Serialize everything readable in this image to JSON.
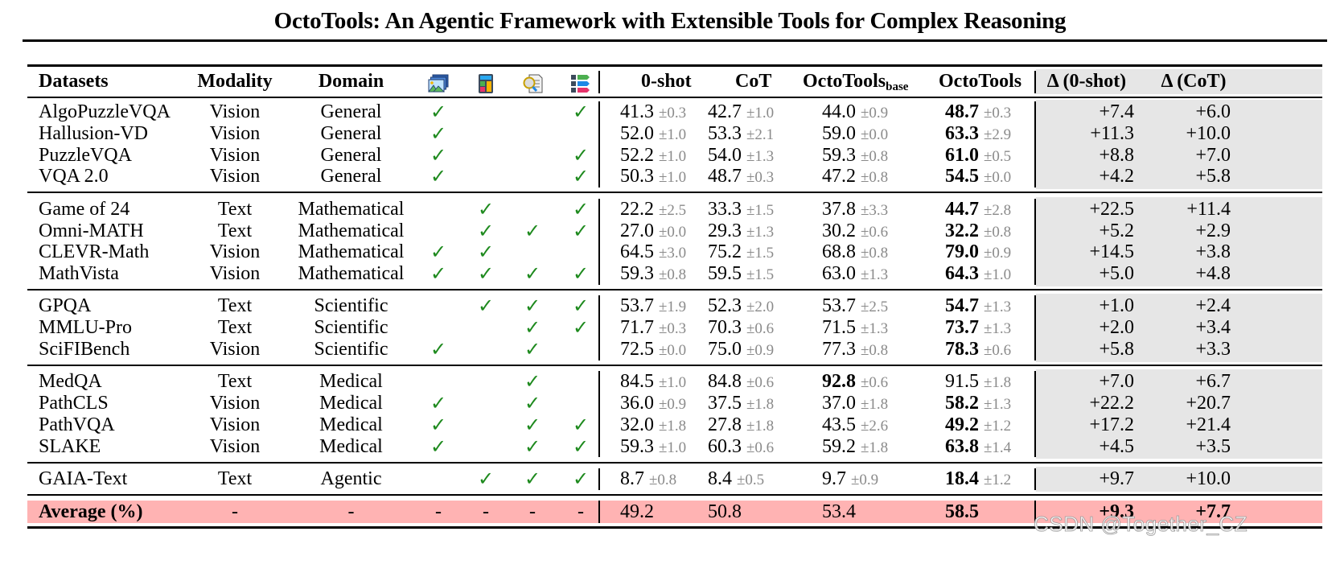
{
  "title": "OctoTools: An Agentic Framework with Extensible Tools for Complex Reasoning",
  "header": {
    "datasets": "Datasets",
    "modality": "Modality",
    "domain": "Domain",
    "tool_icons": [
      "image-tool-icon",
      "calculator-tool-icon",
      "search-document-tool-icon",
      "list-tags-tool-icon"
    ],
    "zero_shot": "0-shot",
    "cot": "CoT",
    "octotools_base": "OctoTools",
    "octotools_base_sub": "base",
    "octotools": "OctoTools",
    "delta_zero_shot": "Δ (0-shot)",
    "delta_cot": "Δ (CoT)"
  },
  "check_glyph": "✓",
  "rows": [
    {
      "dataset": "AlgoPuzzleVQA",
      "modality": "Vision",
      "domain": "General",
      "tools": [
        "✓",
        "",
        "",
        "✓"
      ],
      "zs": "41.3",
      "zs_std": "±0.3",
      "cot": "42.7",
      "cot_std": "±1.0",
      "base": "44.0",
      "base_std": "±0.9",
      "oct": "48.7",
      "oct_std": "±0.3",
      "d0": "+7.4",
      "dc": "+6.0"
    },
    {
      "dataset": "Hallusion-VD",
      "modality": "Vision",
      "domain": "General",
      "tools": [
        "✓",
        "",
        "",
        ""
      ],
      "zs": "52.0",
      "zs_std": "±1.0",
      "cot": "53.3",
      "cot_std": "±2.1",
      "base": "59.0",
      "base_std": "±0.0",
      "oct": "63.3",
      "oct_std": "±2.9",
      "d0": "+11.3",
      "dc": "+10.0"
    },
    {
      "dataset": "PuzzleVQA",
      "modality": "Vision",
      "domain": "General",
      "tools": [
        "✓",
        "",
        "",
        "✓"
      ],
      "zs": "52.2",
      "zs_std": "±1.0",
      "cot": "54.0",
      "cot_std": "±1.3",
      "base": "59.3",
      "base_std": "±0.8",
      "oct": "61.0",
      "oct_std": "±0.5",
      "d0": "+8.8",
      "dc": "+7.0"
    },
    {
      "dataset": "VQA 2.0",
      "modality": "Vision",
      "domain": "General",
      "tools": [
        "✓",
        "",
        "",
        "✓"
      ],
      "zs": "50.3",
      "zs_std": "±1.0",
      "cot": "48.7",
      "cot_std": "±0.3",
      "base": "47.2",
      "base_std": "±0.8",
      "oct": "54.5",
      "oct_std": "±0.0",
      "d0": "+4.2",
      "dc": "+5.8"
    },
    {
      "dataset": "Game of 24",
      "modality": "Text",
      "domain": "Mathematical",
      "tools": [
        "",
        "✓",
        "",
        "✓"
      ],
      "zs": "22.2",
      "zs_std": "±2.5",
      "cot": "33.3",
      "cot_std": "±1.5",
      "base": "37.8",
      "base_std": "±3.3",
      "oct": "44.7",
      "oct_std": "±2.8",
      "d0": "+22.5",
      "dc": "+11.4"
    },
    {
      "dataset": "Omni-MATH",
      "modality": "Text",
      "domain": "Mathematical",
      "tools": [
        "",
        "✓",
        "✓",
        "✓"
      ],
      "zs": "27.0",
      "zs_std": "±0.0",
      "cot": "29.3",
      "cot_std": "±1.3",
      "base": "30.2",
      "base_std": "±0.6",
      "oct": "32.2",
      "oct_std": "±0.8",
      "d0": "+5.2",
      "dc": "+2.9"
    },
    {
      "dataset": "CLEVR-Math",
      "modality": "Vision",
      "domain": "Mathematical",
      "tools": [
        "✓",
        "✓",
        "",
        ""
      ],
      "zs": "64.5",
      "zs_std": "±3.0",
      "cot": "75.2",
      "cot_std": "±1.5",
      "base": "68.8",
      "base_std": "±0.8",
      "oct": "79.0",
      "oct_std": "±0.9",
      "d0": "+14.5",
      "dc": "+3.8"
    },
    {
      "dataset": "MathVista",
      "modality": "Vision",
      "domain": "Mathematical",
      "tools": [
        "✓",
        "✓",
        "✓",
        "✓"
      ],
      "zs": "59.3",
      "zs_std": "±0.8",
      "cot": "59.5",
      "cot_std": "±1.5",
      "base": "63.0",
      "base_std": "±1.3",
      "oct": "64.3",
      "oct_std": "±1.0",
      "d0": "+5.0",
      "dc": "+4.8"
    },
    {
      "dataset": "GPQA",
      "modality": "Text",
      "domain": "Scientific",
      "tools": [
        "",
        "✓",
        "✓",
        "✓"
      ],
      "zs": "53.7",
      "zs_std": "±1.9",
      "cot": "52.3",
      "cot_std": "±2.0",
      "base": "53.7",
      "base_std": "±2.5",
      "oct": "54.7",
      "oct_std": "±1.3",
      "d0": "+1.0",
      "dc": "+2.4"
    },
    {
      "dataset": "MMLU-Pro",
      "modality": "Text",
      "domain": "Scientific",
      "tools": [
        "",
        "",
        "✓",
        "✓"
      ],
      "zs": "71.7",
      "zs_std": "±0.3",
      "cot": "70.3",
      "cot_std": "±0.6",
      "base": "71.5",
      "base_std": "±1.3",
      "oct": "73.7",
      "oct_std": "±1.3",
      "d0": "+2.0",
      "dc": "+3.4"
    },
    {
      "dataset": "SciFIBench",
      "modality": "Vision",
      "domain": "Scientific",
      "tools": [
        "✓",
        "",
        "✓",
        ""
      ],
      "zs": "72.5",
      "zs_std": "±0.0",
      "cot": "75.0",
      "cot_std": "±0.9",
      "base": "77.3",
      "base_std": "±0.8",
      "oct": "78.3",
      "oct_std": "±0.6",
      "d0": "+5.8",
      "dc": "+3.3"
    },
    {
      "dataset": "MedQA",
      "modality": "Text",
      "domain": "Medical",
      "tools": [
        "",
        "",
        "✓",
        ""
      ],
      "zs": "84.5",
      "zs_std": "±1.0",
      "cot": "84.8",
      "cot_std": "±0.6",
      "base": "92.8",
      "base_std": "±0.6",
      "base_bold": true,
      "oct": "91.5",
      "oct_std": "±1.8",
      "oct_bold": false,
      "d0": "+7.0",
      "dc": "+6.7"
    },
    {
      "dataset": "PathCLS",
      "modality": "Vision",
      "domain": "Medical",
      "tools": [
        "✓",
        "",
        "✓",
        ""
      ],
      "zs": "36.0",
      "zs_std": "±0.9",
      "cot": "37.5",
      "cot_std": "±1.8",
      "base": "37.0",
      "base_std": "±1.8",
      "oct": "58.2",
      "oct_std": "±1.3",
      "d0": "+22.2",
      "dc": "+20.7"
    },
    {
      "dataset": "PathVQA",
      "modality": "Vision",
      "domain": "Medical",
      "tools": [
        "✓",
        "",
        "✓",
        "✓"
      ],
      "zs": "32.0",
      "zs_std": "±1.8",
      "cot": "27.8",
      "cot_std": "±1.8",
      "base": "43.5",
      "base_std": "±2.6",
      "oct": "49.2",
      "oct_std": "±1.2",
      "d0": "+17.2",
      "dc": "+21.4"
    },
    {
      "dataset": "SLAKE",
      "modality": "Vision",
      "domain": "Medical",
      "tools": [
        "✓",
        "",
        "✓",
        "✓"
      ],
      "zs": "59.3",
      "zs_std": "±1.0",
      "cot": "60.3",
      "cot_std": "±0.6",
      "base": "59.2",
      "base_std": "±1.8",
      "oct": "63.8",
      "oct_std": "±1.4",
      "d0": "+4.5",
      "dc": "+3.5"
    },
    {
      "dataset": "GAIA-Text",
      "modality": "Text",
      "domain": "Agentic",
      "tools": [
        "",
        "✓",
        "✓",
        "✓"
      ],
      "zs": "8.7",
      "zs_std": "±0.8",
      "cot": "8.4",
      "cot_std": "±0.5",
      "base": "9.7",
      "base_std": "±0.9",
      "oct": "18.4",
      "oct_std": "±1.2",
      "d0": "+9.7",
      "dc": "+10.0"
    }
  ],
  "average": {
    "label": "Average (%)",
    "modality": "-",
    "domain": "-",
    "tools": [
      "-",
      "-",
      "-",
      "-"
    ],
    "zs": "49.2",
    "cot": "50.8",
    "base": "53.4",
    "oct": "58.5",
    "d0": "+9.3",
    "dc": "+7.7"
  },
  "colors": {
    "check": "#1e8a1e",
    "std": "#8a8a8a",
    "delta_bg": "#e6e6e6",
    "average_bg": "#ffb3b3"
  },
  "watermark": "CSDN @Together_CZ"
}
